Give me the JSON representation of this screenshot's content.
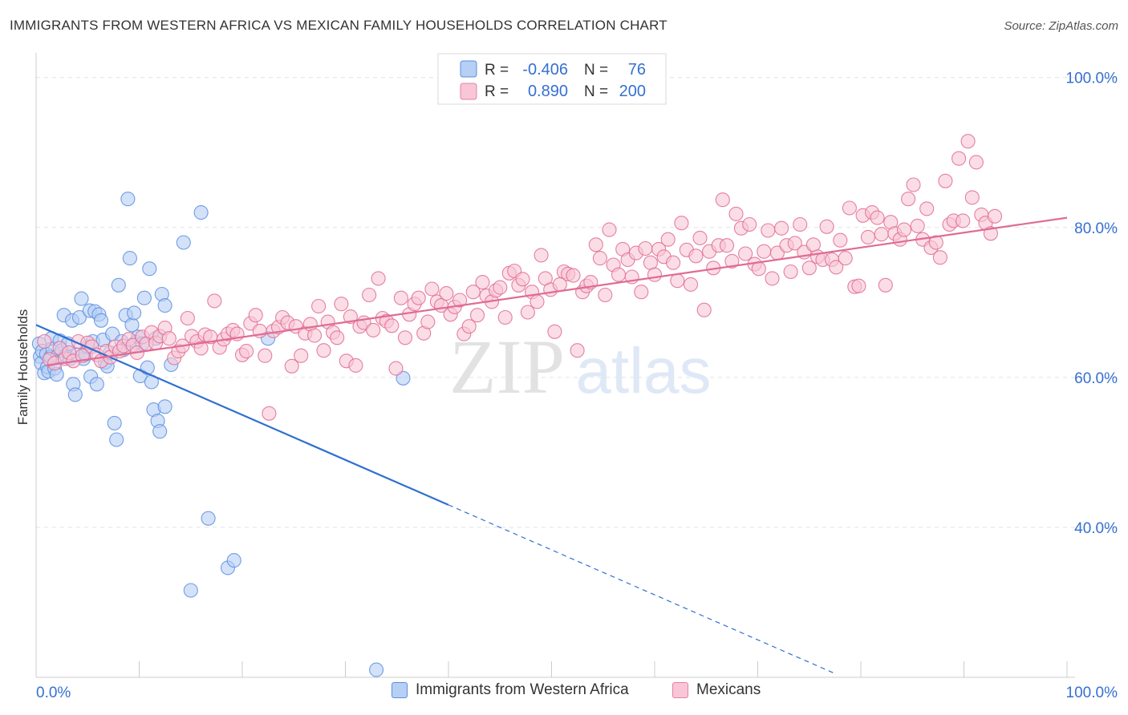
{
  "title": "IMMIGRANTS FROM WESTERN AFRICA VS MEXICAN FAMILY HOUSEHOLDS CORRELATION CHART",
  "source": "Source: ZipAtlas.com",
  "watermark": {
    "zip": "ZIP",
    "atlas": "atlas"
  },
  "legend": {
    "rows": [
      {
        "r_label": "R =",
        "r_value": "-0.406",
        "n_label": "N =",
        "n_value": "76",
        "color": "#7aaaee"
      },
      {
        "r_label": "R =",
        "r_value": "0.890",
        "n_label": "N =",
        "n_value": "200",
        "color": "#f08db0"
      }
    ]
  },
  "bottom_legend": [
    {
      "label": "Immigrants from Western Africa",
      "fill": "#b5cff5",
      "stroke": "#5b8ee0"
    },
    {
      "label": "Mexicans",
      "fill": "#f8c6d6",
      "stroke": "#e77fa5"
    }
  ],
  "chart_data": {
    "type": "scatter",
    "title": "IMMIGRANTS FROM WESTERN AFRICA VS MEXICAN FAMILY HOUSEHOLDS CORRELATION CHART",
    "xlabel": "",
    "ylabel": "Family Households",
    "xlim": [
      0,
      100
    ],
    "ylim": [
      20,
      102
    ],
    "x_tick_labels": [
      "0.0%",
      "100.0%"
    ],
    "y_ticks": [
      40,
      60,
      80,
      100
    ],
    "y_tick_labels": [
      "40.0%",
      "60.0%",
      "80.0%",
      "100.0%"
    ],
    "grid": true,
    "legend_position": "top-center",
    "series": [
      {
        "name": "Immigrants from Western Africa",
        "color": "#5b8ee0",
        "fill": "#b5cff5",
        "r": -0.406,
        "n": 76,
        "trend": {
          "x0": 0,
          "y0": 67.0,
          "x1": 40,
          "y1": 43.0,
          "dashed_to_x": 77.5,
          "dashed_to_y": 20.5
        },
        "points": [
          [
            0.3,
            64.5
          ],
          [
            0.4,
            62.8
          ],
          [
            0.5,
            61.9
          ],
          [
            0.6,
            63.5
          ],
          [
            0.8,
            60.6
          ],
          [
            1.0,
            63.1
          ],
          [
            1.1,
            61.4
          ],
          [
            1.2,
            60.8
          ],
          [
            1.4,
            62.7
          ],
          [
            1.5,
            65.2
          ],
          [
            1.6,
            63.8
          ],
          [
            1.8,
            61.2
          ],
          [
            2.0,
            60.4
          ],
          [
            2.1,
            62.9
          ],
          [
            2.3,
            64.9
          ],
          [
            2.5,
            63.6
          ],
          [
            2.7,
            68.3
          ],
          [
            2.9,
            62.9
          ],
          [
            3.1,
            64.5
          ],
          [
            3.3,
            62.5
          ],
          [
            3.5,
            67.6
          ],
          [
            3.6,
            59.1
          ],
          [
            3.8,
            57.7
          ],
          [
            4.0,
            63.0
          ],
          [
            4.2,
            68.0
          ],
          [
            4.4,
            70.5
          ],
          [
            4.6,
            62.5
          ],
          [
            4.8,
            63.1
          ],
          [
            5.0,
            64.1
          ],
          [
            5.2,
            68.9
          ],
          [
            5.3,
            60.1
          ],
          [
            5.5,
            64.8
          ],
          [
            5.7,
            68.8
          ],
          [
            5.9,
            59.1
          ],
          [
            6.1,
            68.4
          ],
          [
            6.3,
            67.6
          ],
          [
            6.5,
            65.0
          ],
          [
            6.7,
            62.0
          ],
          [
            6.9,
            61.5
          ],
          [
            7.2,
            63.3
          ],
          [
            7.4,
            65.8
          ],
          [
            7.6,
            53.9
          ],
          [
            7.8,
            51.7
          ],
          [
            8.0,
            72.3
          ],
          [
            8.3,
            64.8
          ],
          [
            8.5,
            63.7
          ],
          [
            8.7,
            68.3
          ],
          [
            8.9,
            83.8
          ],
          [
            9.1,
            75.9
          ],
          [
            9.3,
            67.0
          ],
          [
            9.5,
            68.6
          ],
          [
            9.7,
            64.7
          ],
          [
            9.9,
            65.4
          ],
          [
            10.1,
            60.2
          ],
          [
            10.3,
            64.5
          ],
          [
            10.5,
            70.6
          ],
          [
            10.8,
            61.3
          ],
          [
            11.0,
            74.5
          ],
          [
            11.2,
            59.4
          ],
          [
            11.4,
            55.7
          ],
          [
            11.6,
            65.2
          ],
          [
            11.8,
            54.2
          ],
          [
            12.0,
            52.8
          ],
          [
            12.2,
            71.1
          ],
          [
            12.5,
            56.1
          ],
          [
            12.5,
            69.6
          ],
          [
            13.1,
            61.7
          ],
          [
            14.3,
            78.0
          ],
          [
            15.0,
            31.6
          ],
          [
            16.0,
            82.0
          ],
          [
            16.7,
            41.2
          ],
          [
            18.6,
            34.6
          ],
          [
            19.2,
            35.6
          ],
          [
            22.5,
            65.2
          ],
          [
            33.0,
            21.0
          ],
          [
            35.6,
            59.9
          ]
        ]
      },
      {
        "name": "Mexicans",
        "color": "#e06b94",
        "fill": "#f8c6d6",
        "r": 0.89,
        "n": 200,
        "trend": {
          "x0": 1,
          "y0": 61.6,
          "x1": 100,
          "y1": 81.3
        },
        "points": [
          [
            0.8,
            64.8
          ],
          [
            1.3,
            62.4
          ],
          [
            1.8,
            61.9
          ],
          [
            2.3,
            63.9
          ],
          [
            2.8,
            62.5
          ],
          [
            3.2,
            63.3
          ],
          [
            3.6,
            62.2
          ],
          [
            4.1,
            64.8
          ],
          [
            4.5,
            62.9
          ],
          [
            5.0,
            64.6
          ],
          [
            5.4,
            64.1
          ],
          [
            5.9,
            63.0
          ],
          [
            6.3,
            62.2
          ],
          [
            6.8,
            63.5
          ],
          [
            7.2,
            62.7
          ],
          [
            7.7,
            64.1
          ],
          [
            8.1,
            63.5
          ],
          [
            8.5,
            64.2
          ],
          [
            9.0,
            65.1
          ],
          [
            9.4,
            64.3
          ],
          [
            9.8,
            63.3
          ],
          [
            10.3,
            65.4
          ],
          [
            10.7,
            64.5
          ],
          [
            11.2,
            66.0
          ],
          [
            11.6,
            64.6
          ],
          [
            12.0,
            65.5
          ],
          [
            12.5,
            66.6
          ],
          [
            12.9,
            65.2
          ],
          [
            13.4,
            62.6
          ],
          [
            13.8,
            63.5
          ],
          [
            14.2,
            64.2
          ],
          [
            14.7,
            67.9
          ],
          [
            15.1,
            65.5
          ],
          [
            15.6,
            64.8
          ],
          [
            16.0,
            63.9
          ],
          [
            16.4,
            65.7
          ],
          [
            16.9,
            65.4
          ],
          [
            17.3,
            70.2
          ],
          [
            17.8,
            64.0
          ],
          [
            18.2,
            65.1
          ],
          [
            18.6,
            65.8
          ],
          [
            19.1,
            66.3
          ],
          [
            19.5,
            65.8
          ],
          [
            20.0,
            63.0
          ],
          [
            20.4,
            63.5
          ],
          [
            20.8,
            67.2
          ],
          [
            21.3,
            68.3
          ],
          [
            21.7,
            66.2
          ],
          [
            22.2,
            62.9
          ],
          [
            22.6,
            55.2
          ],
          [
            23.0,
            66.2
          ],
          [
            23.5,
            66.7
          ],
          [
            23.9,
            68.0
          ],
          [
            24.4,
            67.3
          ],
          [
            24.8,
            61.5
          ],
          [
            25.2,
            66.8
          ],
          [
            25.7,
            62.9
          ],
          [
            26.1,
            65.9
          ],
          [
            26.6,
            67.1
          ],
          [
            27.0,
            65.6
          ],
          [
            27.4,
            69.5
          ],
          [
            27.9,
            63.6
          ],
          [
            28.3,
            67.4
          ],
          [
            28.8,
            66.0
          ],
          [
            29.2,
            65.3
          ],
          [
            29.6,
            69.8
          ],
          [
            30.1,
            62.2
          ],
          [
            30.5,
            68.1
          ],
          [
            31.0,
            61.6
          ],
          [
            31.4,
            66.8
          ],
          [
            31.8,
            67.3
          ],
          [
            32.3,
            71.0
          ],
          [
            32.7,
            66.3
          ],
          [
            33.2,
            73.2
          ],
          [
            33.6,
            67.9
          ],
          [
            34.0,
            67.5
          ],
          [
            34.5,
            66.9
          ],
          [
            34.9,
            61.2
          ],
          [
            35.4,
            70.6
          ],
          [
            35.8,
            65.3
          ],
          [
            36.2,
            68.4
          ],
          [
            36.7,
            69.8
          ],
          [
            37.1,
            70.6
          ],
          [
            37.6,
            65.9
          ],
          [
            38.0,
            67.4
          ],
          [
            38.4,
            71.8
          ],
          [
            38.9,
            70.1
          ],
          [
            39.3,
            69.6
          ],
          [
            39.8,
            71.2
          ],
          [
            40.2,
            68.4
          ],
          [
            40.6,
            69.4
          ],
          [
            41.1,
            70.3
          ],
          [
            41.5,
            65.8
          ],
          [
            42.0,
            66.8
          ],
          [
            42.4,
            71.4
          ],
          [
            42.8,
            68.3
          ],
          [
            43.3,
            72.7
          ],
          [
            43.7,
            70.9
          ],
          [
            44.2,
            70.1
          ],
          [
            44.6,
            71.6
          ],
          [
            45.0,
            72.0
          ],
          [
            45.5,
            68.0
          ],
          [
            45.9,
            73.9
          ],
          [
            46.4,
            74.2
          ],
          [
            46.8,
            72.3
          ],
          [
            47.2,
            73.1
          ],
          [
            47.7,
            68.7
          ],
          [
            48.1,
            71.4
          ],
          [
            48.6,
            70.1
          ],
          [
            49.0,
            76.3
          ],
          [
            49.4,
            73.2
          ],
          [
            49.9,
            71.7
          ],
          [
            50.3,
            66.1
          ],
          [
            50.8,
            72.4
          ],
          [
            51.2,
            74.1
          ],
          [
            51.6,
            73.8
          ],
          [
            52.1,
            73.6
          ],
          [
            52.5,
            63.6
          ],
          [
            53.0,
            71.4
          ],
          [
            53.4,
            72.2
          ],
          [
            53.8,
            72.7
          ],
          [
            54.3,
            77.7
          ],
          [
            54.7,
            75.9
          ],
          [
            55.2,
            71.0
          ],
          [
            55.6,
            79.7
          ],
          [
            56.0,
            75.0
          ],
          [
            56.5,
            73.7
          ],
          [
            56.9,
            77.1
          ],
          [
            57.4,
            75.7
          ],
          [
            57.8,
            73.4
          ],
          [
            58.2,
            76.6
          ],
          [
            58.7,
            71.4
          ],
          [
            59.1,
            77.2
          ],
          [
            59.6,
            75.3
          ],
          [
            60.0,
            73.7
          ],
          [
            60.4,
            77.1
          ],
          [
            60.9,
            76.1
          ],
          [
            61.3,
            78.4
          ],
          [
            61.8,
            75.3
          ],
          [
            62.2,
            72.9
          ],
          [
            62.6,
            80.6
          ],
          [
            63.1,
            77.0
          ],
          [
            63.5,
            72.4
          ],
          [
            64.0,
            76.2
          ],
          [
            64.4,
            78.6
          ],
          [
            64.8,
            69.0
          ],
          [
            65.3,
            76.8
          ],
          [
            65.7,
            74.6
          ],
          [
            66.2,
            77.6
          ],
          [
            66.6,
            83.7
          ],
          [
            67.0,
            77.6
          ],
          [
            67.5,
            75.5
          ],
          [
            67.9,
            81.8
          ],
          [
            68.4,
            79.9
          ],
          [
            68.8,
            76.5
          ],
          [
            69.2,
            80.4
          ],
          [
            69.7,
            75.1
          ],
          [
            70.1,
            74.5
          ],
          [
            70.6,
            76.8
          ],
          [
            71.0,
            79.6
          ],
          [
            71.4,
            73.2
          ],
          [
            71.9,
            76.6
          ],
          [
            72.3,
            79.9
          ],
          [
            72.8,
            77.6
          ],
          [
            73.2,
            74.1
          ],
          [
            73.6,
            77.9
          ],
          [
            74.1,
            80.4
          ],
          [
            74.5,
            76.7
          ],
          [
            75.0,
            74.6
          ],
          [
            75.4,
            77.7
          ],
          [
            75.8,
            76.1
          ],
          [
            76.3,
            75.7
          ],
          [
            76.7,
            80.1
          ],
          [
            77.2,
            75.7
          ],
          [
            77.6,
            74.7
          ],
          [
            78.0,
            78.3
          ],
          [
            78.5,
            75.9
          ],
          [
            78.9,
            82.6
          ],
          [
            79.4,
            72.1
          ],
          [
            79.8,
            72.2
          ],
          [
            80.2,
            81.6
          ],
          [
            80.7,
            78.7
          ],
          [
            81.1,
            82.0
          ],
          [
            81.6,
            81.3
          ],
          [
            82.0,
            79.1
          ],
          [
            82.4,
            72.3
          ],
          [
            82.9,
            80.7
          ],
          [
            83.3,
            79.2
          ],
          [
            83.8,
            78.4
          ],
          [
            84.2,
            79.7
          ],
          [
            84.6,
            83.8
          ],
          [
            85.1,
            85.7
          ],
          [
            85.5,
            80.2
          ],
          [
            86.0,
            78.4
          ],
          [
            86.4,
            82.5
          ],
          [
            86.8,
            77.3
          ],
          [
            87.3,
            78.0
          ],
          [
            87.7,
            76.0
          ],
          [
            88.2,
            86.2
          ],
          [
            88.6,
            80.4
          ],
          [
            89.0,
            80.9
          ],
          [
            89.5,
            89.2
          ],
          [
            89.9,
            80.9
          ],
          [
            90.4,
            91.5
          ],
          [
            90.8,
            84.0
          ],
          [
            91.2,
            88.7
          ],
          [
            91.7,
            81.7
          ],
          [
            92.1,
            80.6
          ],
          [
            92.6,
            79.2
          ],
          [
            93.0,
            81.5
          ]
        ]
      }
    ]
  }
}
